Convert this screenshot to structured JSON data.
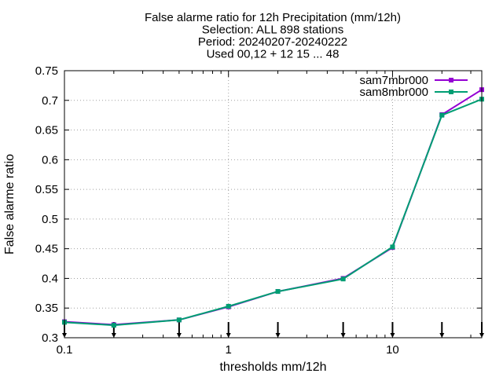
{
  "chart_data": {
    "type": "line",
    "title_lines": [
      "False alarme ratio  for 12h Precipitation (mm/12h)",
      "Selection: ALL    898 stations",
      "Period: 20240207-20240222",
      "Used 00,12 + 12 15 ... 48"
    ],
    "xlabel": "thresholds mm/12h",
    "ylabel": "False alarme ratio",
    "x_scale": "log",
    "xlim": [
      0.1,
      35
    ],
    "ylim": [
      0.3,
      0.75
    ],
    "x_ticks": [
      0.1,
      1,
      10
    ],
    "x_tick_labels": [
      "0.1",
      "1",
      "10"
    ],
    "y_ticks": [
      0.3,
      0.35,
      0.4,
      0.45,
      0.5,
      0.55,
      0.6,
      0.65,
      0.7,
      0.75
    ],
    "y_tick_labels": [
      "0.3",
      "0.35",
      "0.4",
      "0.45",
      "0.5",
      "0.55",
      "0.6",
      "0.65",
      "0.7",
      "0.75"
    ],
    "grid": true,
    "legend_position": "top-right",
    "x": [
      0.1,
      0.2,
      0.5,
      1,
      2,
      5,
      10,
      20,
      35
    ],
    "series": [
      {
        "name": "sam7mbr000",
        "color": "#9400d3",
        "values": [
          0.327,
          0.322,
          0.33,
          0.352,
          0.378,
          0.4,
          0.452,
          0.676,
          0.718
        ]
      },
      {
        "name": "sam8mbr000",
        "color": "#009e73",
        "values": [
          0.326,
          0.321,
          0.33,
          0.353,
          0.378,
          0.399,
          0.453,
          0.675,
          0.702
        ]
      }
    ]
  }
}
